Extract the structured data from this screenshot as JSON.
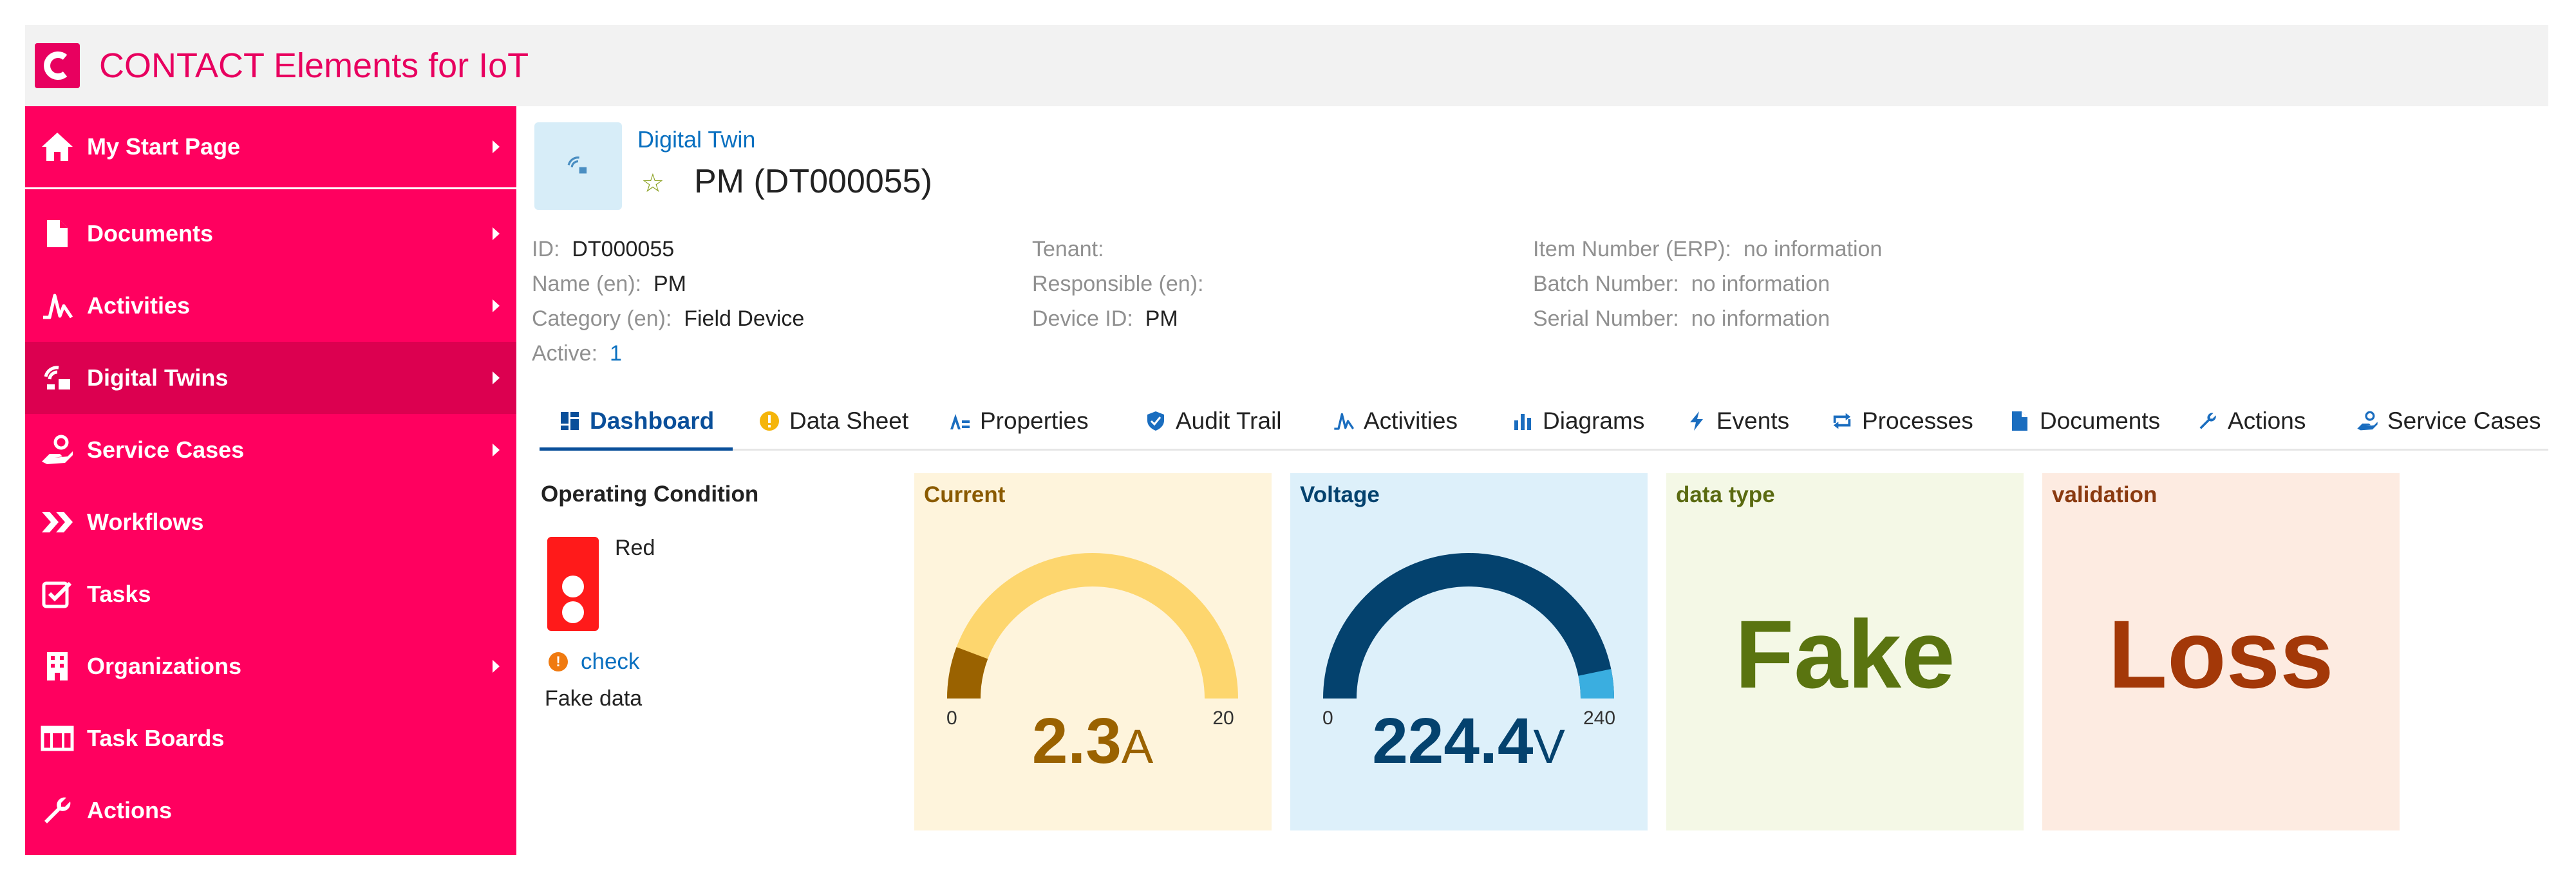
{
  "app": {
    "title": "CONTACT Elements for IoT",
    "logo_letter": "C",
    "brand_color": "#ff005f"
  },
  "sidebar": {
    "items": [
      {
        "label": "My Start Page",
        "icon": "home-icon",
        "has_children": true
      },
      {
        "label": "Documents",
        "icon": "document-icon",
        "has_children": true
      },
      {
        "label": "Activities",
        "icon": "activity-icon",
        "has_children": true
      },
      {
        "label": "Digital Twins",
        "icon": "digital-twin-icon",
        "has_children": true,
        "active": true
      },
      {
        "label": "Service Cases",
        "icon": "service-hand-icon",
        "has_children": true
      },
      {
        "label": "Workflows",
        "icon": "workflow-icon",
        "has_children": false
      },
      {
        "label": "Tasks",
        "icon": "task-check-icon",
        "has_children": false
      },
      {
        "label": "Organizations",
        "icon": "building-icon",
        "has_children": true
      },
      {
        "label": "Task Boards",
        "icon": "board-icon",
        "has_children": false
      },
      {
        "label": "Actions",
        "icon": "wrench-icon",
        "has_children": false
      }
    ]
  },
  "object": {
    "type_label": "Digital Twin",
    "title": "PM (DT000055)",
    "favorite_icon": "star-icon"
  },
  "attributes": {
    "col1": [
      {
        "key": "ID:",
        "value": "DT000055",
        "style": ""
      },
      {
        "key": "Name (en):",
        "value": "PM",
        "style": ""
      },
      {
        "key": "Category (en):",
        "value": "Field Device",
        "style": ""
      },
      {
        "key": "Active:",
        "value": "1",
        "style": "blue"
      }
    ],
    "col2": [
      {
        "key": "Tenant:",
        "value": "",
        "style": ""
      },
      {
        "key": "Responsible (en):",
        "value": "",
        "style": ""
      },
      {
        "key": "Device ID:",
        "value": "PM",
        "style": ""
      }
    ],
    "col3": [
      {
        "key": "Item Number (ERP):",
        "value": "no information",
        "style": "muted"
      },
      {
        "key": "Batch Number:",
        "value": "no information",
        "style": "muted"
      },
      {
        "key": "Serial Number:",
        "value": "no information",
        "style": "muted"
      }
    ]
  },
  "tabs": [
    {
      "label": "Dashboard",
      "icon": "dashboard-icon",
      "active": true
    },
    {
      "label": "Data Sheet",
      "icon": "info-icon"
    },
    {
      "label": "Properties",
      "icon": "properties-icon"
    },
    {
      "label": "Audit Trail",
      "icon": "shield-icon"
    },
    {
      "label": "Activities",
      "icon": "activity-icon"
    },
    {
      "label": "Diagrams",
      "icon": "bar-chart-icon"
    },
    {
      "label": "Events",
      "icon": "lightning-icon"
    },
    {
      "label": "Processes",
      "icon": "process-cycle-icon"
    },
    {
      "label": "Documents",
      "icon": "document-icon"
    },
    {
      "label": "Actions",
      "icon": "wrench-icon"
    },
    {
      "label": "Service Cases",
      "icon": "service-hand-icon"
    }
  ],
  "widgets": {
    "operating_condition": {
      "title": "Operating Condition",
      "state": "Red",
      "link": "check",
      "note": "Fake data",
      "light_color": "#ff1a1a"
    },
    "current": {
      "title": "Current",
      "value": 2.3,
      "display": "2.3",
      "unit": "A",
      "min": 0,
      "max": 20,
      "min_label": "0",
      "max_label": "20",
      "bg": "#fef4dc",
      "track": "#fdd66e",
      "fill": "#9a6200",
      "text": "#9a6200",
      "title_color": "#8a5a00"
    },
    "voltage": {
      "title": "Voltage",
      "value": 224.4,
      "display": "224.4",
      "unit": "V",
      "min": 0,
      "max": 240,
      "min_label": "0",
      "max_label": "240",
      "bg": "#ddf0fa",
      "track": "#04426e",
      "fill": "#3aaee0",
      "text": "#04426e",
      "title_color": "#04426e"
    },
    "data_type": {
      "title": "data type",
      "value": "Fake",
      "bg": "#f4f8e6",
      "text": "#5a7410",
      "title_color": "#5a6a10"
    },
    "validation": {
      "title": "validation",
      "value": "Loss",
      "bg": "#fdebe1",
      "text": "#a33808",
      "title_color": "#8a3a10"
    }
  }
}
